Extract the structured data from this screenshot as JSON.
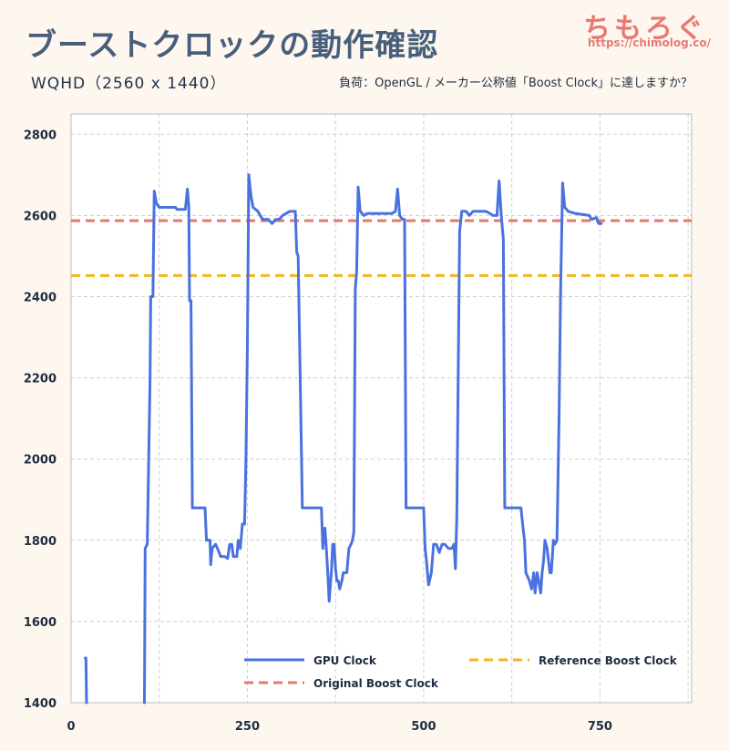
{
  "title": "ブーストクロックの動作確認",
  "subtitle": "WQHD（2560 x 1440）",
  "load_note": "負荷：OpenGL / メーカー公称値「Boost Clock」に達しますか？",
  "brand": {
    "name": "ちもろぐ",
    "url": "https://chimolog.co/"
  },
  "colors": {
    "gpu": "#4a72df",
    "original_boost": "#e07b68",
    "reference_boost": "#f5b614",
    "grid": "#cfcfcf",
    "text": "#1f2d40",
    "title": "#485f7c",
    "brand": "#e87a73"
  },
  "chart_data": {
    "type": "line",
    "title": "ブーストクロックの動作確認",
    "xlabel": "",
    "ylabel": "",
    "xlim": [
      0,
      880
    ],
    "ylim": [
      1400,
      2850
    ],
    "x_ticks": [
      0,
      250,
      500,
      750
    ],
    "y_ticks": [
      1400,
      1600,
      1800,
      2000,
      2200,
      2400,
      2600,
      2800
    ],
    "grid": true,
    "legend_position": "bottom",
    "series": [
      {
        "name": "GPU Clock",
        "style": "solid",
        "segments": [
          [
            [
              20,
              1510
            ],
            [
              21,
              1510
            ],
            [
              22,
              1400
            ]
          ],
          [
            [
              104,
              1400
            ],
            [
              105,
              1780
            ],
            [
              108,
              1790
            ],
            [
              110,
              1990
            ],
            [
              112,
              2200
            ],
            [
              113,
              2400
            ],
            [
              116,
              2400
            ],
            [
              118,
              2660
            ],
            [
              121,
              2630
            ],
            [
              125,
              2620
            ],
            [
              140,
              2620
            ],
            [
              148,
              2620
            ],
            [
              150,
              2615
            ],
            [
              162,
              2615
            ],
            [
              165,
              2665
            ],
            [
              167,
              2620
            ],
            [
              168,
              2390
            ],
            [
              170,
              2390
            ],
            [
              172,
              1880
            ],
            [
              190,
              1880
            ],
            [
              192,
              1800
            ],
            [
              197,
              1800
            ],
            [
              198,
              1740
            ],
            [
              200,
              1780
            ],
            [
              205,
              1790
            ],
            [
              210,
              1770
            ],
            [
              212,
              1760
            ],
            [
              218,
              1760
            ],
            [
              222,
              1755
            ],
            [
              225,
              1790
            ],
            [
              228,
              1790
            ],
            [
              230,
              1760
            ],
            [
              235,
              1760
            ],
            [
              237,
              1800
            ],
            [
              240,
              1780
            ],
            [
              243,
              1840
            ],
            [
              246,
              1840
            ],
            [
              248,
              2000
            ],
            [
              250,
              2280
            ],
            [
              252,
              2700
            ],
            [
              255,
              2650
            ],
            [
              258,
              2620
            ],
            [
              265,
              2610
            ],
            [
              268,
              2600
            ],
            [
              272,
              2590
            ],
            [
              280,
              2590
            ],
            [
              285,
              2580
            ],
            [
              290,
              2590
            ],
            [
              295,
              2590
            ],
            [
              300,
              2600
            ],
            [
              310,
              2610
            ],
            [
              318,
              2610
            ],
            [
              320,
              2510
            ],
            [
              322,
              2500
            ],
            [
              328,
              1880
            ],
            [
              355,
              1880
            ],
            [
              357,
              1780
            ],
            [
              358,
              1810
            ],
            [
              360,
              1830
            ],
            [
              362,
              1780
            ],
            [
              364,
              1720
            ],
            [
              366,
              1650
            ],
            [
              369,
              1720
            ],
            [
              371,
              1790
            ],
            [
              373,
              1790
            ],
            [
              375,
              1730
            ],
            [
              377,
              1700
            ],
            [
              379,
              1700
            ],
            [
              381,
              1680
            ],
            [
              384,
              1700
            ],
            [
              386,
              1720
            ],
            [
              388,
              1720
            ],
            [
              391,
              1720
            ],
            [
              394,
              1780
            ],
            [
              397,
              1790
            ],
            [
              399,
              1800
            ],
            [
              401,
              1820
            ],
            [
              403,
              2420
            ],
            [
              405,
              2460
            ],
            [
              407,
              2670
            ],
            [
              410,
              2610
            ],
            [
              415,
              2600
            ],
            [
              420,
              2605
            ],
            [
              440,
              2605
            ],
            [
              455,
              2605
            ],
            [
              460,
              2610
            ],
            [
              463,
              2665
            ],
            [
              466,
              2600
            ],
            [
              470,
              2590
            ],
            [
              473,
              2590
            ],
            [
              475,
              1880
            ],
            [
              500,
              1880
            ],
            [
              502,
              1780
            ],
            [
              504,
              1750
            ],
            [
              507,
              1690
            ],
            [
              511,
              1720
            ],
            [
              514,
              1790
            ],
            [
              518,
              1790
            ],
            [
              522,
              1770
            ],
            [
              526,
              1790
            ],
            [
              530,
              1790
            ],
            [
              535,
              1780
            ],
            [
              540,
              1780
            ],
            [
              543,
              1790
            ],
            [
              545,
              1730
            ],
            [
              547,
              1860
            ],
            [
              551,
              2560
            ],
            [
              554,
              2610
            ],
            [
              560,
              2610
            ],
            [
              565,
              2600
            ],
            [
              570,
              2610
            ],
            [
              580,
              2610
            ],
            [
              588,
              2610
            ],
            [
              594,
              2605
            ],
            [
              598,
              2600
            ],
            [
              604,
              2600
            ],
            [
              607,
              2685
            ],
            [
              610,
              2600
            ],
            [
              613,
              2540
            ],
            [
              615,
              1880
            ],
            [
              638,
              1880
            ],
            [
              641,
              1830
            ],
            [
              643,
              1800
            ],
            [
              645,
              1720
            ],
            [
              650,
              1700
            ],
            [
              653,
              1680
            ],
            [
              656,
              1720
            ],
            [
              658,
              1670
            ],
            [
              661,
              1720
            ],
            [
              663,
              1700
            ],
            [
              666,
              1670
            ],
            [
              668,
              1720
            ],
            [
              670,
              1750
            ],
            [
              672,
              1800
            ],
            [
              675,
              1780
            ],
            [
              677,
              1750
            ],
            [
              679,
              1720
            ],
            [
              681,
              1720
            ],
            [
              684,
              1800
            ],
            [
              686,
              1790
            ],
            [
              689,
              1800
            ],
            [
              692,
              2100
            ],
            [
              694,
              2400
            ],
            [
              697,
              2680
            ],
            [
              700,
              2620
            ],
            [
              705,
              2610
            ],
            [
              715,
              2605
            ],
            [
              735,
              2600
            ],
            [
              738,
              2590
            ],
            [
              745,
              2595
            ],
            [
              748,
              2580
            ],
            [
              752,
              2580
            ]
          ]
        ]
      },
      {
        "name": "Original Boost Clock",
        "style": "dashed",
        "value": 2587
      },
      {
        "name": "Reference Boost Clock",
        "style": "dashed",
        "value": 2452
      }
    ]
  }
}
